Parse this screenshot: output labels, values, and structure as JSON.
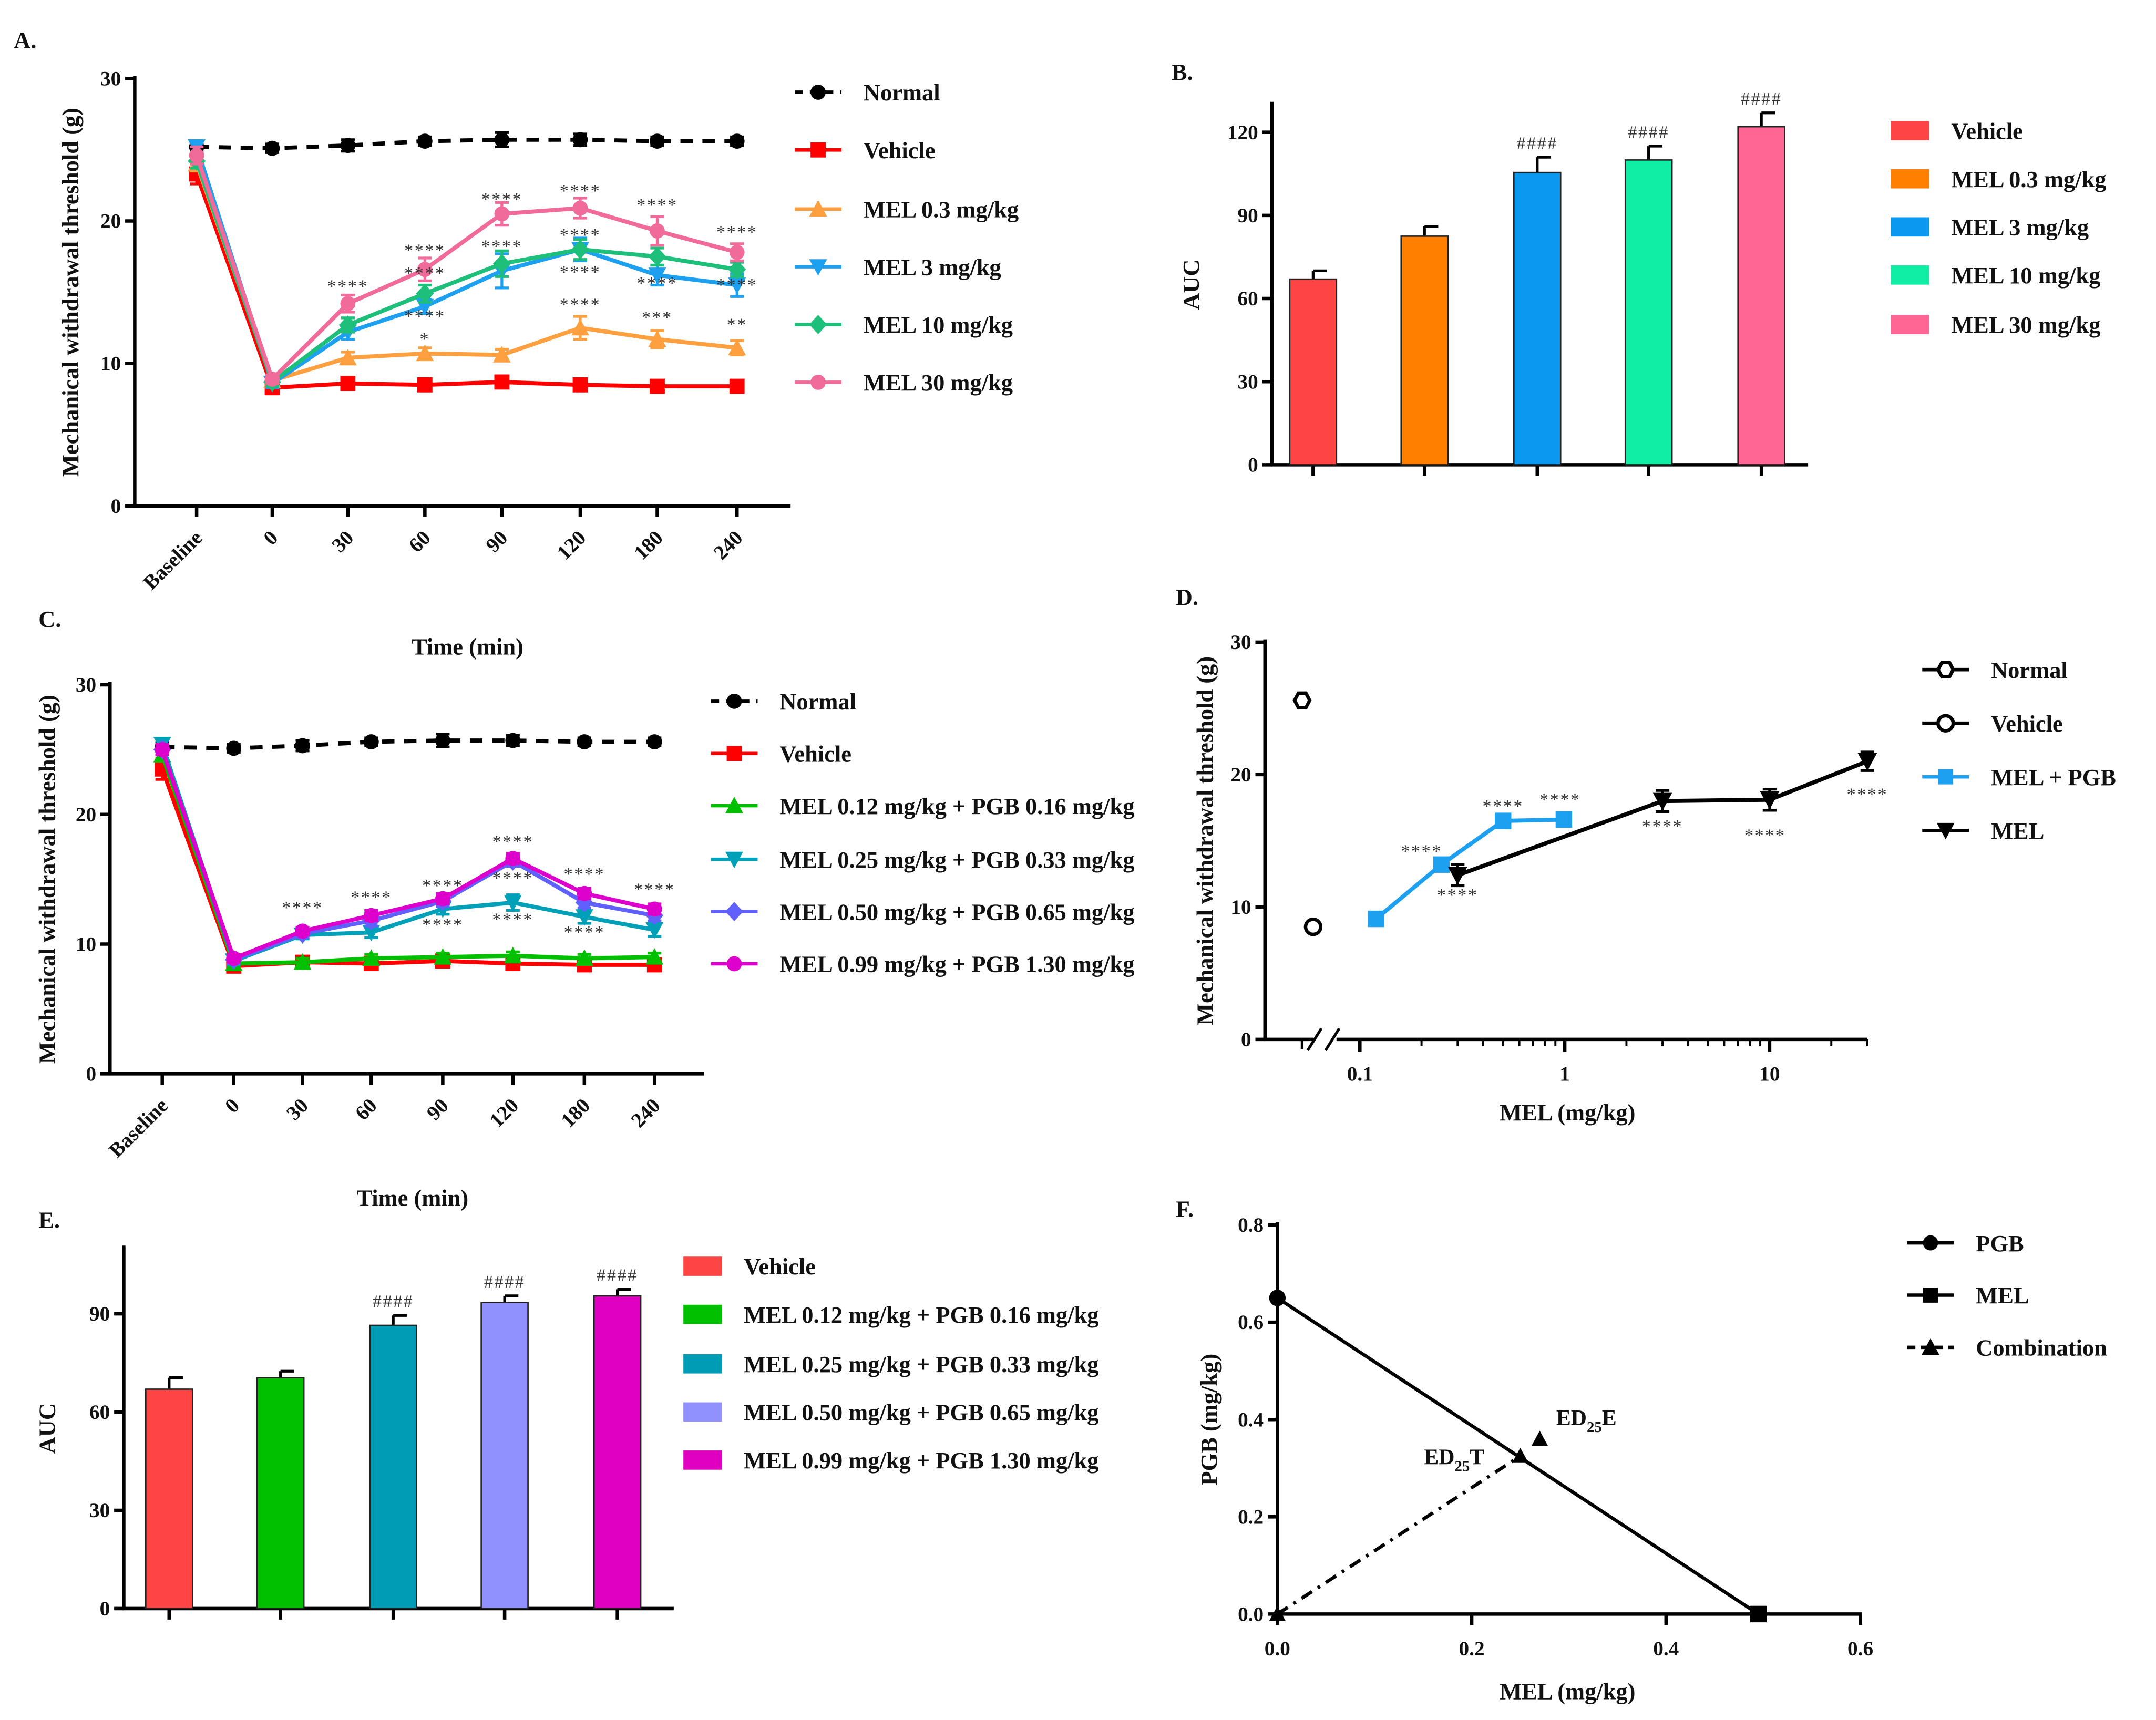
{
  "chart_data": [
    {
      "panel_label": "A.",
      "type": "line",
      "xlabel": "Time (min)",
      "ylabel": "Mechanical withdrawal threshold (g)",
      "ylim": [
        0,
        30
      ],
      "yticks": [
        "0",
        "10",
        "20",
        "30"
      ],
      "categories": [
        "Baseline",
        "0",
        "30",
        "60",
        "90",
        "120",
        "180",
        "240"
      ],
      "legend_position": "right",
      "series": [
        {
          "name": "Normal",
          "color": "#000000",
          "marker": "circle",
          "line": "dashed",
          "values": [
            25.2,
            25.1,
            25.3,
            25.6,
            25.7,
            25.7,
            25.6,
            25.6
          ],
          "errors": [
            0.3,
            0.3,
            0.4,
            0.3,
            0.5,
            0.4,
            0.3,
            0.3
          ]
        },
        {
          "name": "Vehicle",
          "color": "#FF0000",
          "marker": "square",
          "line": "solid",
          "values": [
            23.3,
            8.3,
            8.6,
            8.5,
            8.7,
            8.5,
            8.4,
            8.4
          ],
          "errors": [
            0.7,
            0.3,
            0.4,
            0.3,
            0.4,
            0.3,
            0.3,
            0.3
          ]
        },
        {
          "name": "MEL 0.3 mg/kg",
          "color": "#FFA040",
          "marker": "triangle-up",
          "line": "solid",
          "values": [
            24.0,
            8.8,
            10.4,
            10.7,
            10.6,
            12.5,
            11.7,
            11.1
          ],
          "errors": [
            0.5,
            0.3,
            0.4,
            0.4,
            0.4,
            0.8,
            0.6,
            0.5
          ]
        },
        {
          "name": "MEL 3 mg/kg",
          "color": "#1EA0F0",
          "marker": "triangle-down",
          "line": "solid",
          "values": [
            25.2,
            8.6,
            12.2,
            14.0,
            16.5,
            18.0,
            16.2,
            15.5
          ],
          "errors": [
            0.4,
            0.3,
            0.5,
            0.5,
            1.2,
            0.8,
            0.7,
            0.8
          ]
        },
        {
          "name": "MEL 10 mg/kg",
          "color": "#1DBF7A",
          "marker": "diamond",
          "line": "solid",
          "values": [
            24.2,
            8.7,
            12.7,
            14.9,
            17.0,
            18.0,
            17.5,
            16.6
          ],
          "errors": [
            0.5,
            0.3,
            0.5,
            0.6,
            0.9,
            0.7,
            0.6,
            0.5
          ]
        },
        {
          "name": "MEL 30 mg/kg",
          "color": "#F06A9A",
          "marker": "circle",
          "line": "solid",
          "values": [
            24.6,
            8.9,
            14.2,
            16.6,
            20.5,
            20.9,
            19.3,
            17.8
          ],
          "errors": [
            0.6,
            0.3,
            0.6,
            0.8,
            0.8,
            0.7,
            1.0,
            0.6
          ]
        }
      ],
      "annotations": [
        {
          "x": "30",
          "y": 15.6,
          "text": "****"
        },
        {
          "x": "60",
          "y": 18.1,
          "text": "****"
        },
        {
          "x": "60",
          "y": 16.5,
          "text": "****"
        },
        {
          "x": "60",
          "y": 13.5,
          "text": "****"
        },
        {
          "x": "60",
          "y": 11.9,
          "text": "*"
        },
        {
          "x": "90",
          "y": 21.7,
          "text": "****"
        },
        {
          "x": "90",
          "y": 18.4,
          "text": "****"
        },
        {
          "x": "120",
          "y": 22.3,
          "text": "****"
        },
        {
          "x": "120",
          "y": 19.2,
          "text": "****"
        },
        {
          "x": "120",
          "y": 16.6,
          "text": "****"
        },
        {
          "x": "120",
          "y": 14.3,
          "text": "****"
        },
        {
          "x": "180",
          "y": 21.3,
          "text": "****"
        },
        {
          "x": "180",
          "y": 15.8,
          "text": "****"
        },
        {
          "x": "180",
          "y": 13.4,
          "text": "***"
        },
        {
          "x": "240",
          "y": 19.4,
          "text": "****"
        },
        {
          "x": "240",
          "y": 15.7,
          "text": "****"
        },
        {
          "x": "240",
          "y": 12.9,
          "text": "**"
        }
      ]
    },
    {
      "panel_label": "B.",
      "type": "bar",
      "ylabel": "AUC",
      "ylim": [
        0,
        130
      ],
      "yticks": [
        "0",
        "30",
        "60",
        "90",
        "120"
      ],
      "legend_position": "right",
      "bars": [
        {
          "name": "Vehicle",
          "color": "#FF4444",
          "value": 67,
          "error": 3,
          "annotation": ""
        },
        {
          "name": "MEL 0.3 mg/kg",
          "color": "#FF8000",
          "value": 82.5,
          "error": 3.5,
          "annotation": ""
        },
        {
          "name": "MEL 3 mg/kg",
          "color": "#0A98F0",
          "value": 105.5,
          "error": 5.5,
          "annotation": "####"
        },
        {
          "name": "MEL 10 mg/kg",
          "color": "#10EDA5",
          "value": 110,
          "error": 5,
          "annotation": "####"
        },
        {
          "name": "MEL 30 mg/kg",
          "color": "#FF6694",
          "value": 122,
          "error": 5,
          "annotation": "####"
        }
      ]
    },
    {
      "panel_label": "C.",
      "type": "line",
      "xlabel": "Time (min)",
      "ylabel": "Mechanical withdrawal threshold (g)",
      "ylim": [
        0,
        30
      ],
      "yticks": [
        "0",
        "10",
        "20",
        "30"
      ],
      "categories": [
        "Baseline",
        "0",
        "30",
        "60",
        "90",
        "120",
        "180",
        "240"
      ],
      "legend_position": "right",
      "series": [
        {
          "name": "Normal",
          "color": "#000000",
          "marker": "circle",
          "line": "dashed",
          "values": [
            25.2,
            25.1,
            25.3,
            25.6,
            25.7,
            25.7,
            25.6,
            25.6
          ],
          "errors": [
            0.3,
            0.3,
            0.4,
            0.3,
            0.5,
            0.4,
            0.3,
            0.3
          ]
        },
        {
          "name": "Vehicle",
          "color": "#FF0000",
          "marker": "square",
          "line": "solid",
          "values": [
            23.5,
            8.3,
            8.6,
            8.5,
            8.7,
            8.5,
            8.4,
            8.4
          ],
          "errors": [
            0.8,
            0.3,
            0.4,
            0.3,
            0.4,
            0.3,
            0.3,
            0.3
          ]
        },
        {
          "name": "MEL 0.12 mg/kg + PGB 0.16 mg/kg",
          "color": "#00C000",
          "marker": "triangle-up",
          "line": "solid",
          "values": [
            24.6,
            8.5,
            8.6,
            8.9,
            9.0,
            9.1,
            8.9,
            9.0
          ],
          "errors": [
            0.5,
            0.3,
            0.3,
            0.3,
            0.3,
            0.3,
            0.3,
            0.3
          ]
        },
        {
          "name": "MEL 0.25 mg/kg + PGB 0.33 mg/kg",
          "color": "#00A0B8",
          "marker": "triangle-down",
          "line": "solid",
          "values": [
            25.4,
            8.7,
            10.7,
            10.9,
            12.7,
            13.2,
            12.1,
            11.1
          ],
          "errors": [
            0.4,
            0.3,
            0.3,
            0.4,
            0.4,
            0.6,
            0.5,
            0.5
          ]
        },
        {
          "name": "MEL 0.50 mg/kg + PGB 0.65 mg/kg",
          "color": "#6060FF",
          "marker": "diamond",
          "line": "solid",
          "values": [
            25.0,
            8.8,
            10.8,
            11.8,
            13.3,
            16.4,
            13.2,
            12.2
          ],
          "errors": [
            0.4,
            0.3,
            0.3,
            0.4,
            0.4,
            0.4,
            0.4,
            0.4
          ]
        },
        {
          "name": "MEL 0.99 mg/kg + PGB 1.30 mg/kg",
          "color": "#DD00CC",
          "marker": "circle",
          "line": "solid",
          "values": [
            25.0,
            8.9,
            11.0,
            12.2,
            13.5,
            16.6,
            13.9,
            12.7
          ],
          "errors": [
            0.4,
            0.3,
            0.3,
            0.4,
            0.4,
            0.4,
            0.4,
            0.4
          ]
        }
      ],
      "annotations": [
        {
          "x": "30",
          "y": 13.0,
          "text": "****"
        },
        {
          "x": "60",
          "y": 13.8,
          "text": "****"
        },
        {
          "x": "90",
          "y": 14.7,
          "text": "****"
        },
        {
          "x": "90",
          "y": 11.7,
          "text": "****"
        },
        {
          "x": "120",
          "y": 18.1,
          "text": "****"
        },
        {
          "x": "120",
          "y": 15.3,
          "text": "****"
        },
        {
          "x": "120",
          "y": 12.1,
          "text": "****"
        },
        {
          "x": "180",
          "y": 15.6,
          "text": "****"
        },
        {
          "x": "180",
          "y": 11.1,
          "text": "****"
        },
        {
          "x": "240",
          "y": 14.4,
          "text": "****"
        }
      ]
    },
    {
      "panel_label": "D.",
      "type": "line",
      "xlabel": "MEL (mg/kg)",
      "ylabel": "Mechanical withdrawal threshold (g)",
      "xscale": "log",
      "axis_break": true,
      "xticks": [
        "0.1",
        "1",
        "10"
      ],
      "ylim": [
        0,
        30
      ],
      "yticks": [
        "0",
        "10",
        "20",
        "30"
      ],
      "legend_position": "right",
      "series": [
        {
          "name": "Normal",
          "color": "#000000",
          "marker": "hexagon-open",
          "line": "none",
          "values": [
            25.6
          ]
        },
        {
          "name": "Vehicle",
          "color": "#000000",
          "marker": "circle-open",
          "line": "none",
          "values": [
            8.5
          ]
        },
        {
          "name": "MEL + PGB",
          "color": "#1EA0F0",
          "marker": "square",
          "line": "solid",
          "x": [
            0.12,
            0.25,
            0.5,
            0.99
          ],
          "values": [
            9.1,
            13.2,
            16.5,
            16.6
          ],
          "errors": [
            0.4,
            0.5,
            0.4,
            0.4
          ]
        },
        {
          "name": "MEL",
          "color": "#000000",
          "marker": "triangle-down",
          "line": "solid",
          "x": [
            0.3,
            3,
            10,
            30
          ],
          "values": [
            12.4,
            18.0,
            18.1,
            21.0
          ],
          "errors": [
            0.8,
            0.8,
            0.8,
            0.7
          ]
        }
      ],
      "annotations": [
        {
          "x": 0.2,
          "y": 14.4,
          "text": "****"
        },
        {
          "x": 0.3,
          "y": 11.1,
          "text": "****"
        },
        {
          "x": 0.5,
          "y": 17.8,
          "text": "****"
        },
        {
          "x": 0.95,
          "y": 18.3,
          "text": "****"
        },
        {
          "x": 3,
          "y": 16.3,
          "text": "****"
        },
        {
          "x": 9.5,
          "y": 15.6,
          "text": "****"
        },
        {
          "x": 30,
          "y": 18.7,
          "text": "****"
        }
      ]
    },
    {
      "panel_label": "E.",
      "type": "bar",
      "ylabel": "AUC",
      "ylim": [
        0,
        110
      ],
      "yticks": [
        "0",
        "30",
        "60",
        "90"
      ],
      "legend_position": "right",
      "bars": [
        {
          "name": "Vehicle",
          "color": "#FF4444",
          "value": 67,
          "error": 3.5,
          "annotation": ""
        },
        {
          "name": "MEL 0.12 mg/kg + PGB 0.16 mg/kg",
          "color": "#00C000",
          "value": 70.5,
          "error": 2,
          "annotation": ""
        },
        {
          "name": "MEL 0.25 mg/kg + PGB 0.33 mg/kg",
          "color": "#009BB5",
          "value": 86.5,
          "error": 3,
          "annotation": "####"
        },
        {
          "name": "MEL 0.50 mg/kg + PGB 0.65 mg/kg",
          "color": "#9090FF",
          "value": 93.5,
          "error": 2,
          "annotation": "####"
        },
        {
          "name": "MEL 0.99 mg/kg + PGB 1.30 mg/kg",
          "color": "#E000C0",
          "value": 95.5,
          "error": 2,
          "annotation": "####"
        }
      ]
    },
    {
      "panel_label": "F.",
      "type": "scatter",
      "xlabel": "MEL (mg/kg)",
      "ylabel": "PGB (mg/kg)",
      "xlim": [
        0,
        0.6
      ],
      "ylim": [
        0,
        0.8
      ],
      "xticks": [
        "0.0",
        "0.2",
        "0.4",
        "0.6"
      ],
      "yticks": [
        "0.0",
        "0.2",
        "0.4",
        "0.6",
        "0.8"
      ],
      "legend_position": "right",
      "series": [
        {
          "name": "PGB",
          "marker": "circle",
          "line": "solid",
          "x": [
            0
          ],
          "values": [
            0.65
          ]
        },
        {
          "name": "MEL",
          "marker": "square",
          "line": "solid",
          "x": [
            0.495
          ],
          "values": [
            0
          ]
        },
        {
          "name": "Combination",
          "marker": "triangle-up",
          "line": "dash-dot",
          "x": [
            0,
            0.25
          ],
          "values": [
            0,
            0.325
          ]
        }
      ],
      "isobole": {
        "from": [
          0,
          0.65
        ],
        "to": [
          0.495,
          0
        ]
      },
      "points": [
        {
          "label": "ED",
          "subscript": "25",
          "suffix": "T",
          "x": 0.25,
          "y": 0.325
        },
        {
          "label": "ED",
          "subscript": "25",
          "suffix": "E",
          "x": 0.27,
          "y": 0.36
        }
      ]
    }
  ]
}
